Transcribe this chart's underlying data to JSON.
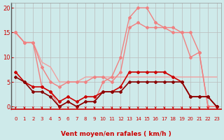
{
  "xlabel": "Vent moyen/en rafales ( km/h )",
  "background_color": "#ceeaea",
  "grid_color": "#bbbbbb",
  "x_ticks": [
    0,
    1,
    2,
    3,
    4,
    5,
    6,
    7,
    8,
    9,
    10,
    11,
    12,
    13,
    14,
    15,
    16,
    17,
    18,
    19,
    20,
    21,
    22,
    23
  ],
  "y_ticks": [
    0,
    5,
    10,
    15,
    20
  ],
  "ylim": [
    0,
    21
  ],
  "xlim": [
    0,
    23
  ],
  "lines": [
    {
      "x": [
        0,
        1,
        2,
        3,
        4,
        5,
        6,
        7,
        8,
        9,
        10,
        11,
        12,
        13,
        14,
        15,
        16,
        17,
        18,
        19,
        20,
        21,
        22,
        23
      ],
      "y": [
        15,
        13,
        13,
        9,
        8,
        5,
        5,
        5,
        6,
        6,
        6,
        6,
        6,
        6,
        6,
        6,
        6,
        6,
        6,
        6,
        6,
        6,
        6,
        6
      ],
      "color": "#f0a0a0",
      "linewidth": 1.0,
      "marker": null,
      "markersize": 0
    },
    {
      "x": [
        0,
        1,
        2,
        3,
        4,
        5,
        6,
        7,
        8,
        9,
        10,
        11,
        12,
        13,
        14,
        15,
        16,
        17,
        18,
        19,
        20,
        21,
        22,
        23
      ],
      "y": [
        15,
        13,
        13,
        4,
        3,
        0,
        1,
        0,
        1,
        1,
        5,
        6,
        10,
        18,
        20,
        20,
        17,
        16,
        16,
        15,
        10,
        11,
        0,
        0
      ],
      "color": "#f08080",
      "linewidth": 1.0,
      "marker": "D",
      "markersize": 2
    },
    {
      "x": [
        0,
        1,
        2,
        3,
        4,
        5,
        6,
        7,
        8,
        9,
        10,
        11,
        12,
        13,
        14,
        15,
        16,
        17,
        18,
        19,
        20,
        21,
        22,
        23
      ],
      "y": [
        15,
        13,
        13,
        8,
        5,
        4,
        5,
        5,
        5,
        6,
        6,
        5,
        7,
        16,
        17,
        16,
        16,
        16,
        15,
        15,
        15,
        11,
        0,
        0
      ],
      "color": "#f08080",
      "linewidth": 1.0,
      "marker": "D",
      "markersize": 2
    },
    {
      "x": [
        0,
        1,
        2,
        3,
        4,
        5,
        6,
        7,
        8,
        9,
        10,
        11,
        12,
        13,
        14,
        15,
        16,
        17,
        18,
        19,
        20,
        21,
        22,
        23
      ],
      "y": [
        7,
        5,
        4,
        4,
        3,
        1,
        2,
        1,
        2,
        2,
        3,
        3,
        4,
        7,
        7,
        7,
        7,
        7,
        6,
        5,
        2,
        2,
        2,
        0
      ],
      "color": "#cc0000",
      "linewidth": 1.2,
      "marker": "D",
      "markersize": 2
    },
    {
      "x": [
        0,
        1,
        2,
        3,
        4,
        5,
        6,
        7,
        8,
        9,
        10,
        11,
        12,
        13,
        14,
        15,
        16,
        17,
        18,
        19,
        20,
        21,
        22,
        23
      ],
      "y": [
        6,
        5,
        3,
        3,
        2,
        0,
        1,
        0,
        1,
        1,
        3,
        3,
        3,
        5,
        5,
        5,
        5,
        5,
        5,
        5,
        2,
        2,
        2,
        0
      ],
      "color": "#880000",
      "linewidth": 1.2,
      "marker": "D",
      "markersize": 2
    }
  ],
  "arrow_color": "#cc0000",
  "tick_label_color": "#cc0000",
  "axis_label_color": "#cc0000",
  "ytick_label_color": "#cc0000",
  "xlabel_fontsize": 6.5,
  "xtick_fontsize": 5.0,
  "ytick_fontsize": 6.0
}
